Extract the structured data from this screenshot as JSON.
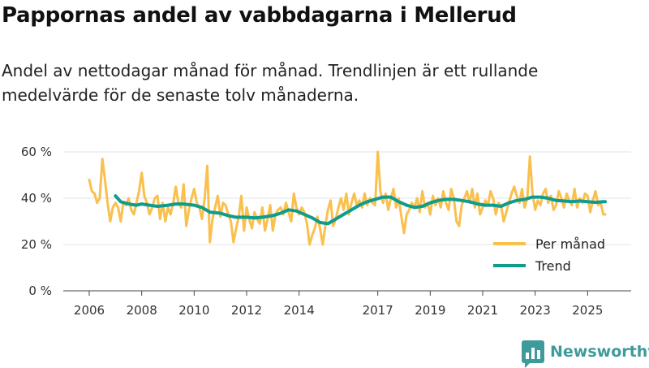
{
  "chart_data": {
    "type": "line",
    "title": "Pappornas andel av vabbdagarna i Mellerud",
    "subtitle": "Andel av nettodagar månad för månad. Trendlinjen är ett rullande medelvärde för de senaste tolv månaderna.",
    "xlabel": "",
    "ylabel": "",
    "xlim": [
      2006.0,
      2025.67
    ],
    "ylim": [
      0,
      60
    ],
    "y_ticks": [
      {
        "value": 0,
        "label": "0 %"
      },
      {
        "value": 20,
        "label": "20 %"
      },
      {
        "value": 40,
        "label": "40 %"
      },
      {
        "value": 60,
        "label": "60 %"
      }
    ],
    "x_ticks": [
      {
        "value": 2006,
        "label": "2006"
      },
      {
        "value": 2008,
        "label": "2008"
      },
      {
        "value": 2010,
        "label": "2010"
      },
      {
        "value": 2012,
        "label": "2012"
      },
      {
        "value": 2014,
        "label": "2014"
      },
      {
        "value": 2017,
        "label": "2017"
      },
      {
        "value": 2019,
        "label": "2019"
      },
      {
        "value": 2021,
        "label": "2021"
      },
      {
        "value": 2023,
        "label": "2023"
      },
      {
        "value": 2025,
        "label": "2025"
      }
    ],
    "grid": true,
    "legend_position": "bottom-right",
    "series": [
      {
        "name": "Per månad",
        "color": "#f9c04e",
        "points": [
          [
            2006.0,
            48
          ],
          [
            2006.1,
            43
          ],
          [
            2006.2,
            42
          ],
          [
            2006.3,
            38
          ],
          [
            2006.4,
            40
          ],
          [
            2006.5,
            57
          ],
          [
            2006.6,
            48
          ],
          [
            2006.7,
            38
          ],
          [
            2006.8,
            30
          ],
          [
            2006.9,
            36
          ],
          [
            2007.0,
            38
          ],
          [
            2007.1,
            36
          ],
          [
            2007.2,
            30
          ],
          [
            2007.3,
            38
          ],
          [
            2007.4,
            37
          ],
          [
            2007.5,
            40
          ],
          [
            2007.6,
            35
          ],
          [
            2007.7,
            33
          ],
          [
            2007.8,
            38
          ],
          [
            2007.9,
            43
          ],
          [
            2008.0,
            51
          ],
          [
            2008.1,
            41
          ],
          [
            2008.2,
            38
          ],
          [
            2008.3,
            33
          ],
          [
            2008.4,
            36
          ],
          [
            2008.5,
            40
          ],
          [
            2008.6,
            41
          ],
          [
            2008.7,
            31
          ],
          [
            2008.8,
            38
          ],
          [
            2008.9,
            30
          ],
          [
            2009.0,
            36
          ],
          [
            2009.1,
            33
          ],
          [
            2009.2,
            38
          ],
          [
            2009.3,
            45
          ],
          [
            2009.4,
            38
          ],
          [
            2009.5,
            36
          ],
          [
            2009.6,
            46
          ],
          [
            2009.7,
            28
          ],
          [
            2009.8,
            35
          ],
          [
            2009.9,
            40
          ],
          [
            2010.0,
            44
          ],
          [
            2010.1,
            38
          ],
          [
            2010.2,
            36
          ],
          [
            2010.3,
            31
          ],
          [
            2010.4,
            40
          ],
          [
            2010.5,
            54
          ],
          [
            2010.6,
            21
          ],
          [
            2010.7,
            31
          ],
          [
            2010.8,
            36
          ],
          [
            2010.9,
            41
          ],
          [
            2011.0,
            32
          ],
          [
            2011.1,
            38
          ],
          [
            2011.2,
            37
          ],
          [
            2011.3,
            33
          ],
          [
            2011.4,
            30
          ],
          [
            2011.5,
            21
          ],
          [
            2011.6,
            27
          ],
          [
            2011.7,
            32
          ],
          [
            2011.8,
            41
          ],
          [
            2011.9,
            26
          ],
          [
            2012.0,
            36
          ],
          [
            2012.1,
            31
          ],
          [
            2012.2,
            27
          ],
          [
            2012.3,
            34
          ],
          [
            2012.4,
            31
          ],
          [
            2012.5,
            29
          ],
          [
            2012.6,
            36
          ],
          [
            2012.7,
            26
          ],
          [
            2012.8,
            31
          ],
          [
            2012.9,
            37
          ],
          [
            2013.0,
            26
          ],
          [
            2013.1,
            33
          ],
          [
            2013.2,
            35
          ],
          [
            2013.3,
            36
          ],
          [
            2013.4,
            33
          ],
          [
            2013.5,
            38
          ],
          [
            2013.6,
            34
          ],
          [
            2013.7,
            30
          ],
          [
            2013.8,
            42
          ],
          [
            2013.9,
            36
          ],
          [
            2014.0,
            33
          ],
          [
            2014.1,
            36
          ],
          [
            2014.2,
            34
          ],
          [
            2014.3,
            29
          ],
          [
            2014.4,
            20
          ],
          [
            2014.5,
            24
          ],
          [
            2014.6,
            27
          ],
          [
            2014.7,
            32
          ],
          [
            2014.8,
            27
          ],
          [
            2014.9,
            20
          ],
          [
            2015.0,
            28
          ],
          [
            2015.1,
            35
          ],
          [
            2015.2,
            39
          ],
          [
            2015.3,
            28
          ],
          [
            2015.4,
            31
          ],
          [
            2015.5,
            36
          ],
          [
            2015.6,
            40
          ],
          [
            2015.7,
            35
          ],
          [
            2015.8,
            42
          ],
          [
            2015.9,
            33
          ],
          [
            2016.0,
            38
          ],
          [
            2016.1,
            42
          ],
          [
            2016.2,
            37
          ],
          [
            2016.3,
            39
          ],
          [
            2016.4,
            36
          ],
          [
            2016.5,
            42
          ],
          [
            2016.6,
            37
          ],
          [
            2016.7,
            40
          ],
          [
            2016.8,
            38
          ],
          [
            2016.9,
            37
          ],
          [
            2017.0,
            60
          ],
          [
            2017.1,
            43
          ],
          [
            2017.2,
            38
          ],
          [
            2017.3,
            42
          ],
          [
            2017.4,
            35
          ],
          [
            2017.5,
            40
          ],
          [
            2017.6,
            44
          ],
          [
            2017.7,
            36
          ],
          [
            2017.8,
            40
          ],
          [
            2017.9,
            32
          ],
          [
            2018.0,
            25
          ],
          [
            2018.1,
            33
          ],
          [
            2018.2,
            35
          ],
          [
            2018.3,
            38
          ],
          [
            2018.4,
            36
          ],
          [
            2018.5,
            40
          ],
          [
            2018.6,
            34
          ],
          [
            2018.7,
            43
          ],
          [
            2018.8,
            36
          ],
          [
            2018.9,
            38
          ],
          [
            2019.0,
            33
          ],
          [
            2019.1,
            41
          ],
          [
            2019.2,
            37
          ],
          [
            2019.3,
            40
          ],
          [
            2019.4,
            36
          ],
          [
            2019.5,
            43
          ],
          [
            2019.6,
            38
          ],
          [
            2019.7,
            35
          ],
          [
            2019.8,
            44
          ],
          [
            2019.9,
            40
          ],
          [
            2020.0,
            30
          ],
          [
            2020.1,
            28
          ],
          [
            2020.2,
            37
          ],
          [
            2020.3,
            40
          ],
          [
            2020.4,
            43
          ],
          [
            2020.5,
            38
          ],
          [
            2020.6,
            44
          ],
          [
            2020.7,
            36
          ],
          [
            2020.8,
            42
          ],
          [
            2020.9,
            33
          ],
          [
            2021.0,
            36
          ],
          [
            2021.1,
            39
          ],
          [
            2021.2,
            37
          ],
          [
            2021.3,
            43
          ],
          [
            2021.4,
            40
          ],
          [
            2021.5,
            33
          ],
          [
            2021.6,
            38
          ],
          [
            2021.7,
            37
          ],
          [
            2021.8,
            30
          ],
          [
            2021.9,
            34
          ],
          [
            2022.0,
            38
          ],
          [
            2022.1,
            42
          ],
          [
            2022.2,
            45
          ],
          [
            2022.3,
            41
          ],
          [
            2022.4,
            38
          ],
          [
            2022.5,
            44
          ],
          [
            2022.6,
            36
          ],
          [
            2022.7,
            40
          ],
          [
            2022.8,
            58
          ],
          [
            2022.9,
            42
          ],
          [
            2023.0,
            35
          ],
          [
            2023.1,
            39
          ],
          [
            2023.2,
            37
          ],
          [
            2023.3,
            42
          ],
          [
            2023.4,
            44
          ],
          [
            2023.5,
            38
          ],
          [
            2023.6,
            41
          ],
          [
            2023.7,
            35
          ],
          [
            2023.8,
            37
          ],
          [
            2023.9,
            43
          ],
          [
            2024.0,
            40
          ],
          [
            2024.1,
            36
          ],
          [
            2024.2,
            42
          ],
          [
            2024.3,
            39
          ],
          [
            2024.4,
            37
          ],
          [
            2024.5,
            44
          ],
          [
            2024.6,
            36
          ],
          [
            2024.7,
            40
          ],
          [
            2024.8,
            38
          ],
          [
            2024.9,
            42
          ],
          [
            2025.0,
            41
          ],
          [
            2025.1,
            34
          ],
          [
            2025.2,
            39
          ],
          [
            2025.3,
            43
          ],
          [
            2025.4,
            37
          ],
          [
            2025.5,
            38
          ],
          [
            2025.6,
            33
          ],
          [
            2025.67,
            33
          ]
        ]
      },
      {
        "name": "Trend",
        "color": "#109c8c",
        "points": [
          [
            2007.0,
            41
          ],
          [
            2007.2,
            38.5
          ],
          [
            2007.5,
            37.5
          ],
          [
            2007.8,
            37
          ],
          [
            2008.0,
            37.5
          ],
          [
            2008.3,
            37
          ],
          [
            2008.6,
            36.5
          ],
          [
            2009.0,
            37
          ],
          [
            2009.3,
            37.5
          ],
          [
            2009.6,
            37.5
          ],
          [
            2010.0,
            37
          ],
          [
            2010.3,
            36
          ],
          [
            2010.6,
            34
          ],
          [
            2011.0,
            33.5
          ],
          [
            2011.3,
            32.5
          ],
          [
            2011.6,
            31.8
          ],
          [
            2012.0,
            31.8
          ],
          [
            2012.3,
            31.5
          ],
          [
            2012.6,
            31.8
          ],
          [
            2013.0,
            32.5
          ],
          [
            2013.3,
            33.5
          ],
          [
            2013.6,
            35
          ],
          [
            2013.9,
            34.5
          ],
          [
            2014.2,
            33
          ],
          [
            2014.5,
            31.5
          ],
          [
            2014.8,
            29.5
          ],
          [
            2015.1,
            29
          ],
          [
            2015.4,
            31
          ],
          [
            2015.7,
            33
          ],
          [
            2016.0,
            35
          ],
          [
            2016.3,
            37
          ],
          [
            2016.6,
            38.5
          ],
          [
            2016.9,
            39.5
          ],
          [
            2017.2,
            40.5
          ],
          [
            2017.5,
            40.5
          ],
          [
            2017.8,
            38.5
          ],
          [
            2018.1,
            37
          ],
          [
            2018.4,
            36
          ],
          [
            2018.7,
            36.5
          ],
          [
            2019.0,
            38
          ],
          [
            2019.3,
            39
          ],
          [
            2019.6,
            39.5
          ],
          [
            2019.9,
            39.5
          ],
          [
            2020.2,
            39
          ],
          [
            2020.5,
            38.5
          ],
          [
            2020.8,
            37.5
          ],
          [
            2021.1,
            37
          ],
          [
            2021.4,
            37
          ],
          [
            2021.7,
            36.5
          ],
          [
            2022.0,
            38
          ],
          [
            2022.3,
            39
          ],
          [
            2022.6,
            39.5
          ],
          [
            2022.9,
            40.5
          ],
          [
            2023.2,
            40.5
          ],
          [
            2023.5,
            40
          ],
          [
            2023.8,
            39
          ],
          [
            2024.1,
            38.8
          ],
          [
            2024.4,
            38.5
          ],
          [
            2024.7,
            38.8
          ],
          [
            2025.0,
            38.5
          ],
          [
            2025.3,
            38.2
          ],
          [
            2025.6,
            38.5
          ],
          [
            2025.67,
            38.5
          ]
        ]
      }
    ]
  },
  "branding": {
    "name": "Newsworthy",
    "color": "#3f9a9a"
  }
}
